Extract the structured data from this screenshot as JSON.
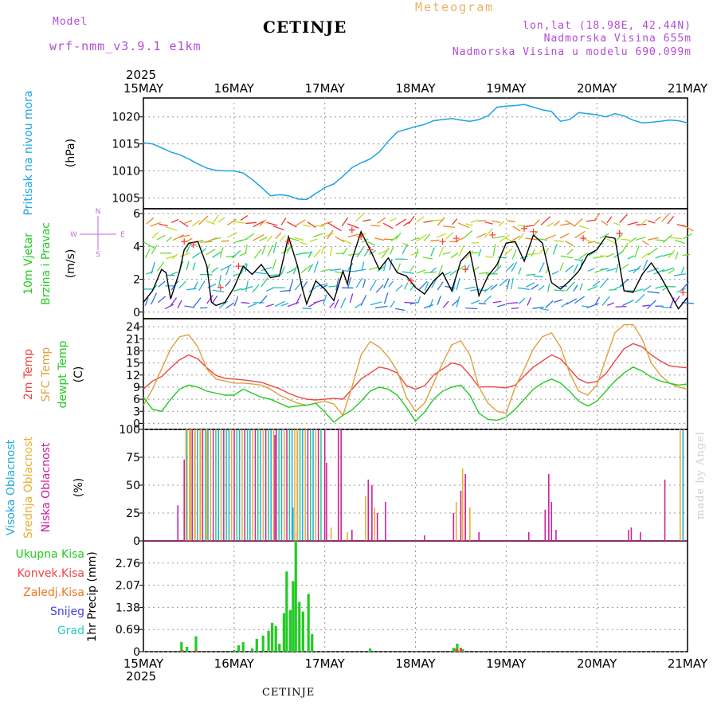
{
  "header": {
    "model_label": "Model",
    "model_name": "wrf-nmm_v3.9.1 e1km",
    "station": "CETINJE",
    "meteogram": "Meteogram",
    "lonlat": "lon,lat (18.98E, 42.44N)",
    "elev": "Nadmorska Visina 655m",
    "model_elev": "Nadmorska Visina u modelu 690.099m",
    "year": "2025"
  },
  "footer": {
    "station": "CETINJE",
    "credit": "made by Angel"
  },
  "colors": {
    "pressure": "#1ea3e6",
    "wind_speed": "#000000",
    "gust_marker": "#ff3030",
    "t2m": "#ee4444",
    "sfc": "#e0a040",
    "dewpt": "#22cc22",
    "cloud_high": "#22aadd",
    "cloud_mid": "#e8b030",
    "cloud_low": "#cc2299",
    "precip_total": "#22cc22",
    "precip_conv": "#ee4444",
    "precip_frz": "#ee7722",
    "precip_snow": "#4444dd",
    "precip_hail": "#22ccbb"
  },
  "chart_data": [
    {
      "type": "line",
      "panel": "pressure",
      "ylabel": [
        "Pritisak na nivou mora",
        "(hPa)"
      ],
      "ylim": [
        1003,
        1023.5
      ],
      "yticks": [
        1005,
        1010,
        1015,
        1020
      ],
      "x_dates": [
        "15MAY",
        "16MAY",
        "17MAY",
        "18MAY",
        "19MAY",
        "20MAY",
        "21MAY"
      ],
      "x_unit": "days since 15MAY 00UTC",
      "series": [
        {
          "x": [
            0,
            0.1,
            0.2,
            0.3,
            0.4,
            0.5,
            0.6,
            0.7,
            0.8,
            0.9,
            1.0,
            1.1,
            1.2,
            1.3,
            1.4,
            1.5,
            1.6,
            1.7,
            1.8,
            1.9,
            2.0,
            2.1,
            2.2,
            2.3,
            2.4,
            2.5,
            2.6,
            2.7,
            2.8,
            2.9,
            3.0,
            3.1,
            3.2,
            3.3,
            3.4,
            3.5,
            3.6,
            3.7,
            3.8,
            3.9,
            4.0,
            4.1,
            4.2,
            4.3,
            4.4,
            4.5,
            4.6,
            4.7,
            4.8,
            4.9,
            5.0,
            5.1,
            5.2,
            5.3,
            5.4,
            5.5,
            5.6,
            5.7,
            5.8,
            5.9,
            6.0
          ],
          "values": [
            1015.2,
            1015.0,
            1014.3,
            1013.5,
            1013.0,
            1012.2,
            1011.3,
            1010.5,
            1010.1,
            1010.0,
            1010.0,
            1009.6,
            1008.4,
            1007.0,
            1005.4,
            1005.6,
            1005.4,
            1004.8,
            1004.7,
            1005.8,
            1006.9,
            1007.6,
            1009.0,
            1010.6,
            1011.5,
            1012.2,
            1013.5,
            1015.5,
            1017.2,
            1017.7,
            1018.2,
            1018.6,
            1019.3,
            1019.5,
            1019.7,
            1019.4,
            1019.2,
            1019.5,
            1020.2,
            1021.8,
            1022.0,
            1022.1,
            1022.3,
            1021.8,
            1021.3,
            1021.0,
            1019.2,
            1019.5,
            1020.8,
            1020.6,
            1020.4,
            1020.0,
            1020.6,
            1020.2,
            1019.4,
            1018.9,
            1019.0,
            1019.2,
            1019.4,
            1019.3,
            1018.9
          ]
        }
      ]
    },
    {
      "type": "line",
      "panel": "wind",
      "ylabel": [
        "10m Vjetar",
        "Brzina i Pravac",
        "(m/s)"
      ],
      "compass": {
        "n": "N",
        "s": "S",
        "w": "W",
        "e": "E"
      },
      "ylim": [
        -0.4,
        6.3
      ],
      "yticks": [
        0,
        2,
        4,
        6
      ],
      "series": [
        {
          "name": "speed",
          "x": [
            0,
            0.1,
            0.2,
            0.25,
            0.3,
            0.4,
            0.45,
            0.5,
            0.6,
            0.7,
            0.75,
            0.8,
            0.9,
            1.0,
            1.1,
            1.2,
            1.3,
            1.4,
            1.5,
            1.6,
            1.7,
            1.75,
            1.8,
            1.9,
            2.0,
            2.1,
            2.2,
            2.25,
            2.3,
            2.4,
            2.5,
            2.6,
            2.7,
            2.8,
            2.9,
            3.0,
            3.1,
            3.2,
            3.3,
            3.4,
            3.5,
            3.6,
            3.7,
            3.8,
            3.9,
            4.0,
            4.1,
            4.2,
            4.3,
            4.4,
            4.5,
            4.6,
            4.7,
            4.8,
            4.9,
            5.0,
            5.1,
            5.2,
            5.3,
            5.4,
            5.5,
            5.6,
            5.7,
            5.8,
            5.9,
            6.0
          ],
          "values": [
            0.6,
            1.3,
            2.6,
            2.4,
            0.8,
            2.5,
            3.8,
            4.2,
            4.3,
            2.8,
            0.6,
            0.4,
            0.6,
            1.5,
            2.8,
            2.3,
            2.9,
            2.1,
            2.2,
            4.6,
            2.8,
            1.5,
            0.5,
            1.9,
            1.4,
            0.7,
            2.5,
            1.7,
            3.2,
            4.9,
            3.8,
            2.6,
            3.3,
            2.4,
            2.2,
            1.5,
            1.1,
            1.9,
            2.4,
            1.3,
            3.1,
            3.7,
            1.0,
            2.2,
            2.9,
            4.2,
            4.3,
            3.1,
            4.7,
            4.2,
            1.8,
            1.4,
            1.9,
            2.5,
            3.5,
            3.8,
            4.6,
            4.5,
            1.3,
            1.2,
            2.3,
            3.0,
            2.2,
            1.2,
            0.2,
            0.9
          ]
        },
        {
          "name": "gust",
          "x": [
            0.45,
            0.55,
            0.85,
            1.05,
            1.6,
            2.3,
            2.4,
            2.5,
            2.95,
            3.3,
            3.45,
            3.55,
            3.85,
            4.2,
            4.3,
            4.85,
            5.25,
            5.95
          ],
          "values": [
            4.3,
            4.1,
            1.5,
            2.8,
            4.3,
            5.0,
            4.6,
            3.8,
            1.9,
            4.3,
            4.5,
            2.6,
            4.7,
            5.1,
            4.9,
            4.5,
            4.8,
            1.2
          ]
        }
      ]
    },
    {
      "type": "line",
      "panel": "temperature",
      "ylabel": [
        "2m Temp",
        "SFC Temp",
        "dewpt Temp",
        "(C)"
      ],
      "ylim": [
        -1.5,
        26
      ],
      "yticks": [
        0,
        3,
        6,
        9,
        12,
        15,
        18,
        21,
        24
      ],
      "x": [
        0,
        0.1,
        0.2,
        0.3,
        0.4,
        0.5,
        0.6,
        0.7,
        0.8,
        0.9,
        1.0,
        1.1,
        1.2,
        1.3,
        1.4,
        1.5,
        1.6,
        1.7,
        1.8,
        1.9,
        2.0,
        2.1,
        2.2,
        2.3,
        2.4,
        2.5,
        2.6,
        2.7,
        2.8,
        2.9,
        3.0,
        3.1,
        3.2,
        3.3,
        3.4,
        3.5,
        3.6,
        3.7,
        3.8,
        3.9,
        4.0,
        4.1,
        4.2,
        4.3,
        4.4,
        4.5,
        4.6,
        4.7,
        4.8,
        4.9,
        5.0,
        5.1,
        5.2,
        5.3,
        5.4,
        5.5,
        5.6,
        5.7,
        5.8,
        5.9,
        6.0
      ],
      "series": [
        {
          "name": "2m Temp",
          "values": [
            8.5,
            10.5,
            11.6,
            13.8,
            15.8,
            17.0,
            16.0,
            13.8,
            11.9,
            11.2,
            11.0,
            10.8,
            10.5,
            10.2,
            9.4,
            8.6,
            7.5,
            6.6,
            6.0,
            5.8,
            6.0,
            6.2,
            6.0,
            8.5,
            11.0,
            12.5,
            14.0,
            13.5,
            12.5,
            9.4,
            8.5,
            9.3,
            12.0,
            13.5,
            15.0,
            14.5,
            12.0,
            9.0,
            9.1,
            9.0,
            8.8,
            9.5,
            11.8,
            14.0,
            15.5,
            17.0,
            16.0,
            13.5,
            11.0,
            10.0,
            10.4,
            12.3,
            15.5,
            18.5,
            19.8,
            19.0,
            17.0,
            15.5,
            14.3,
            14.0,
            13.8
          ]
        },
        {
          "name": "SFC Temp",
          "values": [
            4.5,
            8.5,
            13.5,
            18.5,
            21.5,
            22.0,
            19.0,
            13.5,
            11.0,
            10.5,
            10.0,
            10.0,
            9.8,
            9.5,
            8.5,
            7.0,
            6.0,
            5.0,
            4.5,
            5.0,
            5.5,
            4.8,
            2.0,
            9.0,
            17.0,
            20.3,
            19.0,
            16.5,
            13.0,
            6.5,
            3.0,
            5.0,
            10.0,
            15.0,
            19.5,
            20.5,
            17.0,
            9.0,
            5.0,
            3.0,
            2.5,
            9.0,
            13.5,
            18.5,
            21.5,
            22.5,
            19.0,
            12.5,
            8.0,
            7.0,
            9.5,
            16.0,
            22.5,
            24.5,
            24.5,
            21.0,
            15.0,
            12.0,
            10.0,
            9.0,
            8.5
          ]
        },
        {
          "name": "dewpt Temp",
          "values": [
            6.5,
            3.5,
            3.0,
            6.0,
            8.5,
            9.5,
            9.0,
            8.0,
            7.5,
            7.0,
            7.0,
            8.5,
            7.5,
            6.5,
            6.0,
            5.0,
            4.0,
            4.3,
            4.5,
            5.0,
            2.8,
            0.3,
            2.0,
            3.3,
            5.5,
            8.0,
            9.0,
            8.5,
            7.0,
            4.0,
            0.5,
            2.8,
            6.0,
            8.0,
            9.0,
            9.5,
            7.0,
            2.5,
            1.0,
            0.8,
            1.5,
            3.5,
            6.0,
            8.5,
            10.0,
            11.0,
            10.0,
            8.0,
            5.5,
            4.3,
            5.5,
            8.0,
            10.5,
            12.5,
            14.0,
            13.0,
            11.5,
            10.5,
            10.0,
            9.5,
            9.8
          ]
        }
      ]
    },
    {
      "type": "bar",
      "panel": "cloud",
      "ylabel": [
        "Visoka Oblacnost",
        "Srednja Oblacnost",
        "Niska Oblacnost",
        "(%)"
      ],
      "ylim": [
        0,
        100
      ],
      "yticks": [
        0,
        25,
        50,
        75,
        100
      ],
      "series": [
        {
          "name": "Visoka Oblacnost",
          "x": [
            1.65,
            5.95
          ],
          "values": [
            30,
            100
          ]
        },
        {
          "name": "Srednja Oblacnost",
          "x": [
            0.47,
            0.52,
            0.57,
            0.63,
            0.7,
            1.7,
            2.07,
            2.25,
            2.45,
            2.55,
            2.58,
            3.45,
            3.52,
            3.55,
            3.6,
            5.92
          ],
          "values": [
            100,
            100,
            100,
            100,
            100,
            100,
            12,
            8,
            40,
            30,
            25,
            35,
            65,
            45,
            30,
            100
          ]
        },
        {
          "name": "Niska Oblacnost",
          "x": [
            0.38,
            0.45,
            1.45,
            2.0,
            2.02,
            2.15,
            2.18,
            2.3,
            2.48,
            2.52,
            2.58,
            2.67,
            3.1,
            3.42,
            3.5,
            3.55,
            3.7,
            4.25,
            4.43,
            4.47,
            4.5,
            4.55,
            5.35,
            5.38,
            5.48,
            5.75
          ],
          "values": [
            32,
            73,
            95,
            100,
            70,
            100,
            100,
            10,
            55,
            50,
            25,
            35,
            5,
            25,
            45,
            60,
            8,
            8,
            28,
            60,
            35,
            10,
            10,
            12,
            8,
            55
          ]
        }
      ]
    },
    {
      "type": "bar",
      "panel": "precip",
      "ylabel": [
        "1hr Precip (mm)"
      ],
      "legend": [
        "Ukupna Kisa",
        "Konvek.Kisa",
        "Zaledj.Kisa",
        "Snijeg",
        "Grad"
      ],
      "ylim": [
        0,
        3.45
      ],
      "yticks": [
        0,
        0.69,
        1.38,
        2.07,
        2.76
      ],
      "series": [
        {
          "name": "Ukupna Kisa",
          "x": [
            0.42,
            0.48,
            0.58,
            1.0,
            1.05,
            1.1,
            1.2,
            1.25,
            1.32,
            1.38,
            1.42,
            1.46,
            1.5,
            1.55,
            1.58,
            1.62,
            1.65,
            1.68,
            1.72,
            1.76,
            1.82,
            1.86,
            2.5,
            3.42,
            3.46,
            3.52
          ],
          "values": [
            0.3,
            0.15,
            0.48,
            0.05,
            0.2,
            0.3,
            0.1,
            0.4,
            0.5,
            0.65,
            0.9,
            0.8,
            0.25,
            1.2,
            2.5,
            1.3,
            2.2,
            3.45,
            1.55,
            1.25,
            1.8,
            0.55,
            0.1,
            0.12,
            0.25,
            0.08
          ]
        },
        {
          "name": "Konvek.Kisa",
          "x": [
            0.43,
            0.58,
            3.45,
            3.5
          ],
          "values": [
            0.05,
            0.05,
            0.1,
            0.12
          ]
        }
      ]
    }
  ]
}
